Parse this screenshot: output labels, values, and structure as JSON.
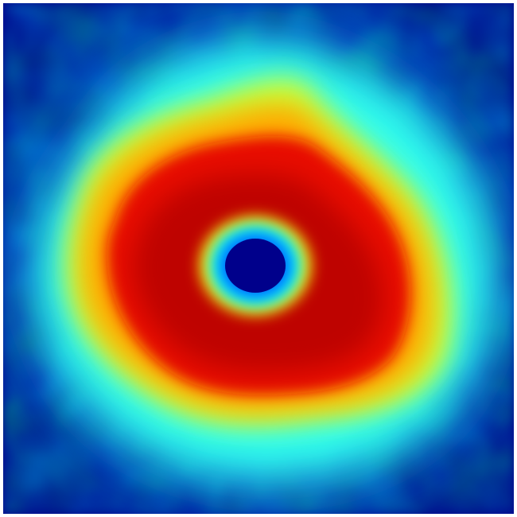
{
  "image": {
    "kind": "heatmap",
    "colormap": "jet",
    "colors": {
      "background": "#ffffff",
      "low": "#00008b",
      "mid_low": "#00ffff",
      "mid": "#ffff00",
      "mid_high": "#ff8c00",
      "high": "#d40000",
      "peak": "#b00000"
    },
    "pattern": "ring"
  }
}
